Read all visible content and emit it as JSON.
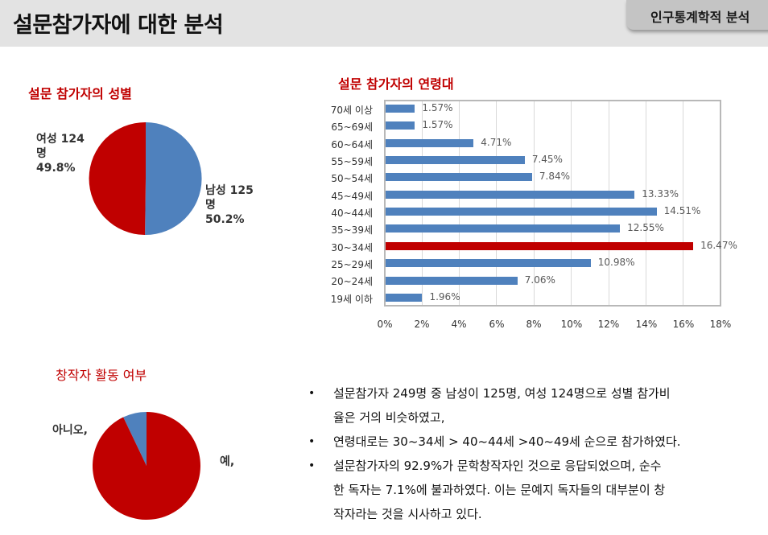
{
  "header": {
    "title": "설문참가자에 대한 분석",
    "tag": "인구통계학적 분석"
  },
  "gender_section": {
    "title": "설문 참가자의 성별",
    "female_label_line1": "여성 124",
    "female_label_line2": "명",
    "female_label_line3": "49.8%",
    "male_label_line1": "남성 125",
    "male_label_line2": "명",
    "male_label_line3": "50.2%"
  },
  "age_section": {
    "title": "설문 참가자의 연령대"
  },
  "creator_section": {
    "title": "창작자 활동 여부",
    "no_label": "아니오,",
    "yes_label": "예,"
  },
  "colors": {
    "primary_red": "#c00000",
    "primary_blue": "#4f81bd",
    "header_bg": "#e3e3e3",
    "tag_bg": "#c4c4c4"
  },
  "chart_data": [
    {
      "type": "pie",
      "title": "설문 참가자의 성별",
      "categories": [
        "남성",
        "여성"
      ],
      "values": [
        125,
        124
      ],
      "percentages": [
        50.2,
        49.8
      ],
      "colors": [
        "#4f81bd",
        "#c00000"
      ],
      "labels": [
        "남성 125 명 50.2%",
        "여성 124 명 49.8%"
      ]
    },
    {
      "type": "bar",
      "orientation": "horizontal",
      "title": "설문 참가자의 연령대",
      "categories": [
        "70세 이상",
        "65~69세",
        "60~64세",
        "55~59세",
        "50~54세",
        "45~49세",
        "40~44세",
        "35~39세",
        "30~34세",
        "25~29세",
        "20~24세",
        "19세 이하"
      ],
      "values": [
        1.57,
        1.57,
        4.71,
        7.45,
        7.84,
        13.33,
        14.51,
        12.55,
        16.47,
        10.98,
        7.06,
        1.96
      ],
      "value_labels": [
        "1.57%",
        "1.57%",
        "4.71%",
        "7.45%",
        "7.84%",
        "13.33%",
        "14.51%",
        "12.55%",
        "16.47%",
        "10.98%",
        "7.06%",
        "1.96%"
      ],
      "highlight_index": 8,
      "xlabel": "",
      "ylabel": "",
      "xlim": [
        0,
        18
      ],
      "xticks": [
        "0%",
        "2%",
        "4%",
        "6%",
        "8%",
        "10%",
        "12%",
        "14%",
        "16%",
        "18%"
      ],
      "grid": true,
      "legend": "none"
    },
    {
      "type": "pie",
      "title": "창작자 활동 여부",
      "categories": [
        "예",
        "아니오"
      ],
      "values": [
        92.9,
        7.1
      ],
      "colors": [
        "#c00000",
        "#4f81bd"
      ],
      "labels": [
        "예,",
        "아니오,"
      ]
    }
  ],
  "bullets": [
    {
      "line1": "설문참가자 249명 중 남성이 125명, 여성 124명으로 성별 참가비",
      "line2": "율은 거의 비슷하였고,"
    },
    {
      "line1": "연령대로는 30~34세 > 40~44세 >40~49세 순으로 참가하였다."
    },
    {
      "line1": "설문참가자의 92.9%가 문학창작자인 것으로 응답되었으며, 순수",
      "line2": "한 독자는 7.1%에 불과하였다. 이는 문예지 독자들의 대부분이 창",
      "line3": "작자라는 것을 시사하고 있다."
    }
  ],
  "bullet_symbol": "•"
}
